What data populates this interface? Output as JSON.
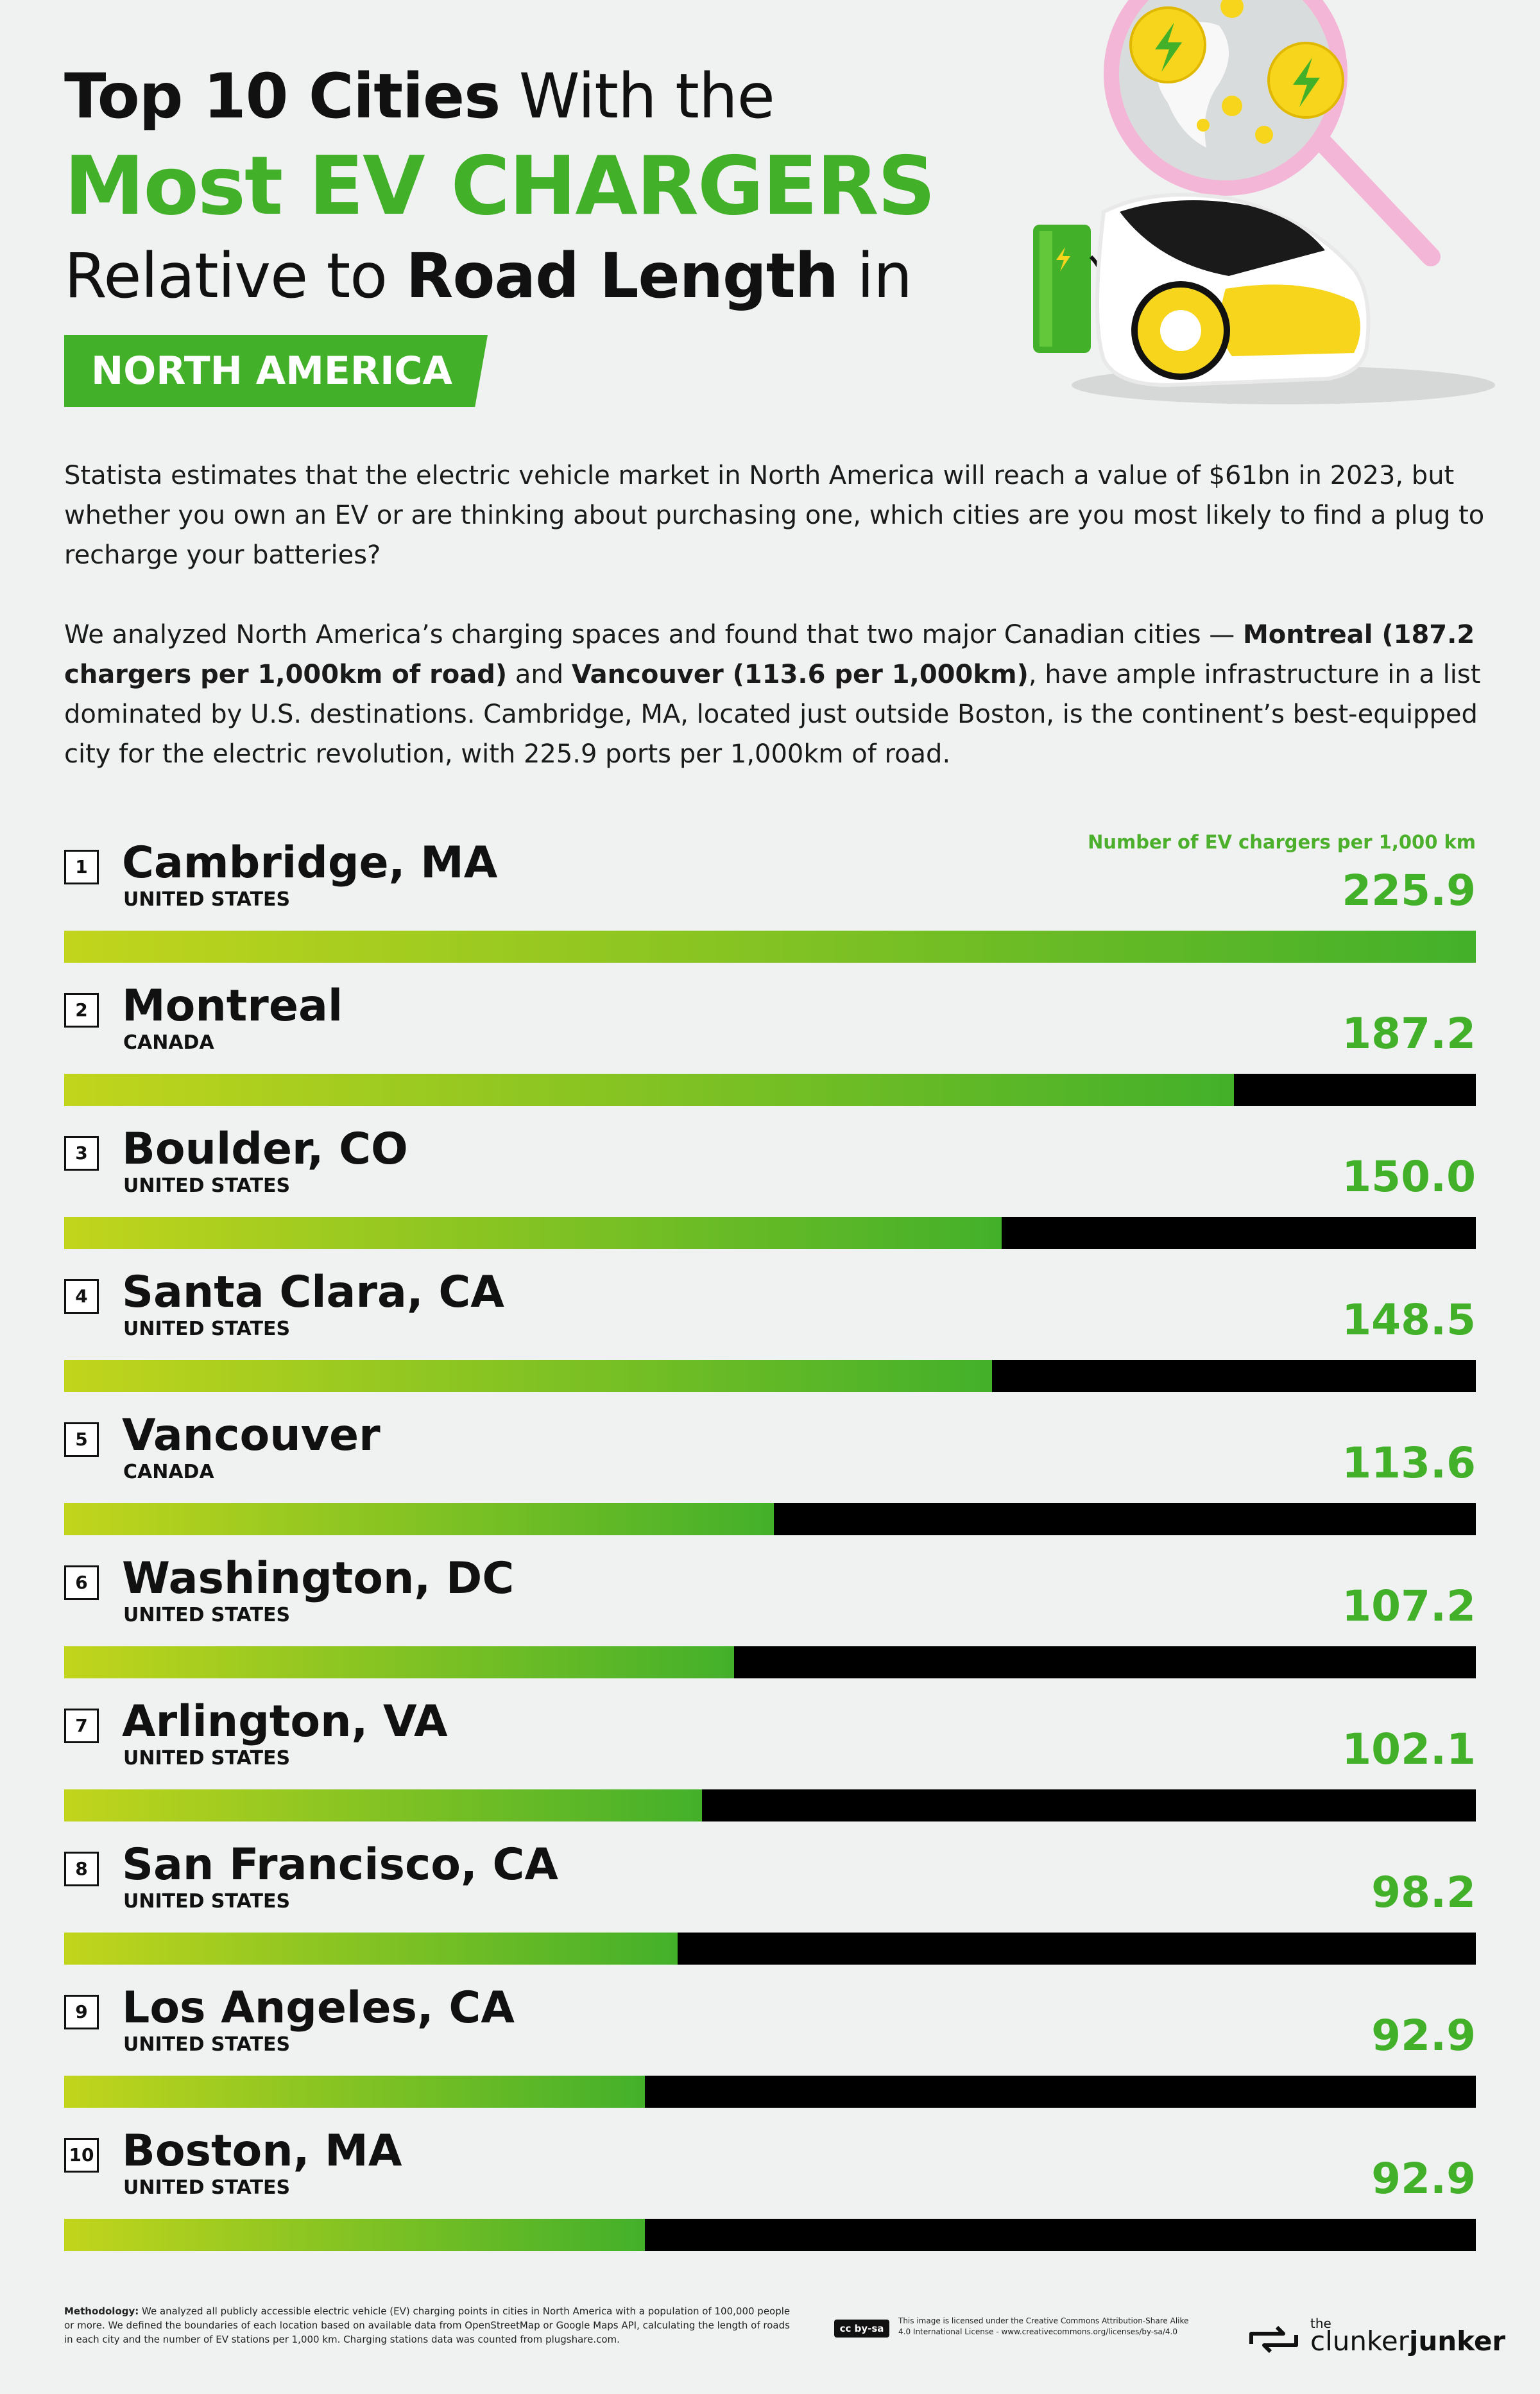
{
  "title": {
    "line1_bold": "Top 10 Cities",
    "line1_rest": " With the",
    "line2": "Most EV CHARGERS",
    "line3_pre": "Relative to ",
    "line3_bold": "Road Length",
    "line3_post": " in",
    "region": "NORTH AMERICA"
  },
  "intro": {
    "p1": "Statista estimates that the electric vehicle market in North America will reach a value of $61bn in 2023, but whether you own an EV or are thinking about purchasing one, which cities are you most likely to find a plug to recharge your batteries?",
    "p2_a": "We analyzed North America’s charging spaces and found that two major Canadian cities — ",
    "p2_b": "Montreal (187.2 chargers per 1,000km of road)",
    "p2_c": " and ",
    "p2_d": "Vancouver (113.6 per 1,000km)",
    "p2_e": ", have ample infrastructure in a list dominated by U.S. destinations. Cambridge, MA, located just outside Boston, is the continent’s best-equipped city for the electric revolution, with 225.9 ports per 1,000km of road."
  },
  "colors": {
    "accent": "#43b02a",
    "bar_start": "#c2d51c",
    "bar_end": "#43b02a",
    "track": "#000000",
    "background": "#f0f2f1"
  },
  "chart_data": {
    "type": "bar",
    "orientation": "horizontal",
    "value_label": "Number of EV chargers per 1,000 km",
    "xlim": [
      0,
      225.9
    ],
    "categories": [
      "Cambridge, MA",
      "Montreal",
      "Boulder, CO",
      "Santa Clara, CA",
      "Vancouver",
      "Washington, DC",
      "Arlington, VA",
      "San Francisco, CA",
      "Los Angeles, CA",
      "Boston, MA"
    ],
    "ranks": [
      "1",
      "2",
      "3",
      "4",
      "5",
      "6",
      "7",
      "8",
      "9",
      "10"
    ],
    "countries": [
      "UNITED STATES",
      "CANADA",
      "UNITED STATES",
      "UNITED STATES",
      "CANADA",
      "UNITED STATES",
      "UNITED STATES",
      "UNITED STATES",
      "UNITED STATES",
      "UNITED STATES"
    ],
    "values": [
      225.9,
      187.2,
      150.0,
      148.5,
      113.6,
      107.2,
      102.1,
      98.2,
      92.9,
      92.9
    ],
    "value_labels": [
      "225.9",
      "187.2",
      "150.0",
      "148.5",
      "113.6",
      "107.2",
      "102.1",
      "98.2",
      "92.9",
      "92.9"
    ]
  },
  "footer": {
    "methodology_label": "Methodology:",
    "methodology_text": " We analyzed all publicly accessible electric vehicle (EV) charging points in cities in North America with a population of 100,000 people or more. We defined the boundaries of each location based on available data from OpenStreetMap or Google Maps API, calculating the length of roads in each city and the number of EV stations per 1,000 km. Charging stations data was counted from plugshare.com.",
    "license_badge": "cc by-sa",
    "license_text": "This image is licensed under the Creative Commons Attribution-Share Alike 4.0 International License - www.creativecommons.org/licenses/by-sa/4.0",
    "logo_small": "the",
    "logo_a": "clunker",
    "logo_b": "junker"
  },
  "icons": [
    "magnifier-icon",
    "charging-map-pin-icon",
    "ev-car-icon",
    "charging-station-icon",
    "recycle-arrows-icon"
  ]
}
